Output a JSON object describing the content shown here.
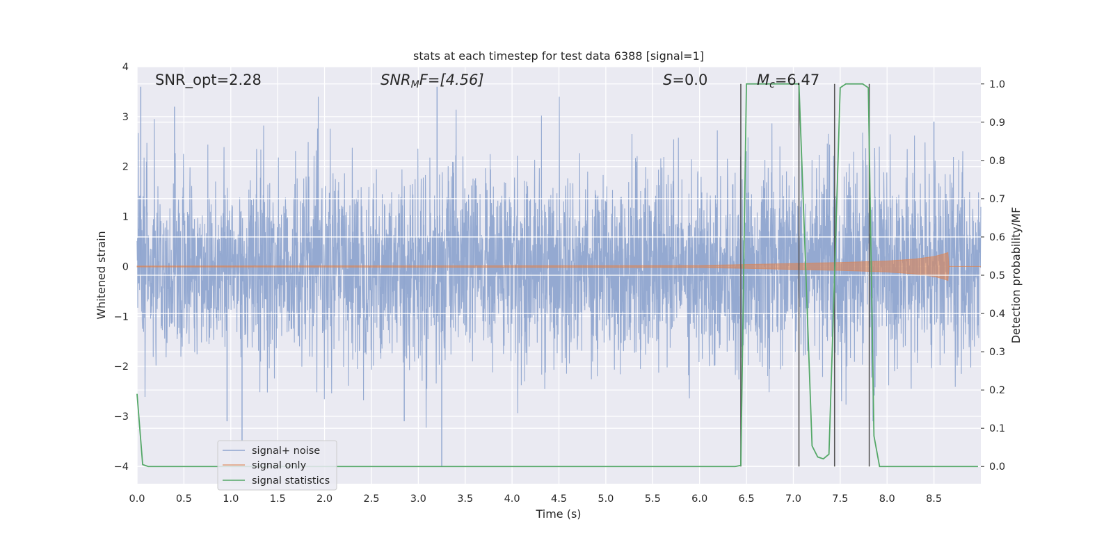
{
  "chart_data": {
    "type": "line",
    "title": "stats at each timestep for test data 6388 [signal=1]",
    "xlabel": "Time (s)",
    "ylabel": "Whitened strain",
    "y2label": "Detection probability/MF",
    "xlim": [
      0.0,
      9.0
    ],
    "ylim": [
      -4.35,
      4.0
    ],
    "y2lim": [
      -0.045,
      1.045
    ],
    "x_ticks": [
      "0.0",
      "0.5",
      "1.0",
      "1.5",
      "2.0",
      "2.5",
      "3.0",
      "3.5",
      "4.0",
      "4.5",
      "5.0",
      "5.5",
      "6.0",
      "6.5",
      "7.0",
      "7.5",
      "8.0",
      "8.5"
    ],
    "y_ticks": [
      "4",
      "3",
      "2",
      "1",
      "0",
      "−1",
      "−2",
      "−3",
      "−4"
    ],
    "y2_ticks": [
      "1.0",
      "0.9",
      "0.8",
      "0.7",
      "0.6",
      "0.5",
      "0.4",
      "0.3",
      "0.2",
      "0.1",
      "0.0"
    ],
    "grid": true,
    "legend_position": "lower-left",
    "annotations": {
      "snr_opt": "SNR_opt=2.28",
      "snr_mf_main": "SNR",
      "snr_mf_sub": "M",
      "snr_mf_rest": "F=[4.56]",
      "s_italic": "S",
      "s_rest": "=0.0",
      "mc_main": "M",
      "mc_sub": "c",
      "mc_rest": "=6.47"
    },
    "series": [
      {
        "name": "signal+ noise",
        "color": "#8fa5cf",
        "description_points": {
          "x": [
            0.0,
            9.0
          ],
          "y_envelope": [
            -2.0,
            2.0
          ],
          "y_spikes_max": [
            3.6,
            3.2,
            3.6,
            2.9
          ],
          "y_spikes_min": [
            -4.0,
            -3.5,
            -3.1,
            -3.1
          ]
        }
      },
      {
        "name": "signal only",
        "color": "#dd8452",
        "x": [
          0.0,
          6.0,
          6.5,
          7.0,
          7.5,
          8.0,
          8.3,
          8.5,
          8.6,
          8.65,
          8.66
        ],
        "amplitude": [
          0.01,
          0.02,
          0.04,
          0.06,
          0.08,
          0.11,
          0.15,
          0.2,
          0.25,
          0.28,
          0.0
        ]
      },
      {
        "name": "signal statistics",
        "color": "#55a868",
        "x": [
          0.0,
          0.06,
          0.12,
          6.38,
          6.44,
          6.5,
          7.06,
          7.12,
          7.2,
          7.26,
          7.32,
          7.38,
          7.44,
          7.5,
          7.56,
          7.62,
          7.68,
          7.74,
          7.8,
          7.86,
          7.92,
          8.97
        ],
        "y": [
          0.19,
          0.005,
          0.0,
          0.0,
          0.003,
          1.0,
          1.0,
          0.6,
          0.054,
          0.025,
          0.02,
          0.032,
          0.5,
          0.99,
          1.0,
          1.0,
          1.0,
          1.0,
          0.99,
          0.08,
          0.0,
          0.0
        ]
      }
    ],
    "vertical_lines_x": [
      6.44,
      7.06,
      7.44,
      7.81
    ],
    "vertical_lines_y2_range": [
      0.0,
      1.0
    ],
    "extra_horizontal_gridlines_y2": [
      0.7,
      0.6,
      0.5,
      0.4
    ]
  },
  "colors": {
    "axes_bg": "#eaeaf2",
    "grid": "#ffffff",
    "vline": "#555555"
  }
}
